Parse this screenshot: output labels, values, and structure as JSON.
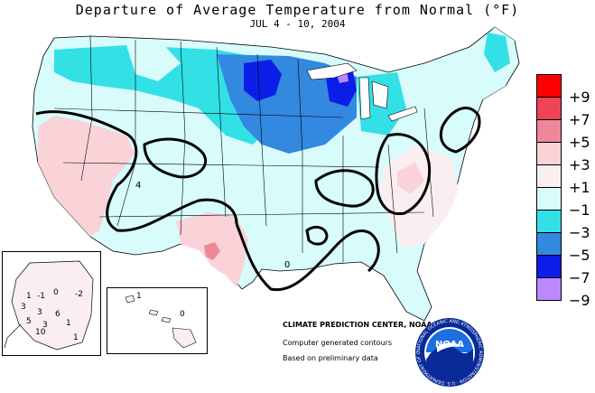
{
  "title": "Departure of Average Temperature from Normal (°F)",
  "subtitle": "JUL 4 - 10, 2004",
  "legend": {
    "items": [
      {
        "label": "+9",
        "color": "#ff0000"
      },
      {
        "label": "+7",
        "color": "#ee4455"
      },
      {
        "label": "+5",
        "color": "#ee8899"
      },
      {
        "label": "+3",
        "color": "#f9d3d8"
      },
      {
        "label": "+1",
        "color": "#fbeef0"
      },
      {
        "label": "−1",
        "color": "#d8fbfb"
      },
      {
        "label": "−3",
        "color": "#33e0e6"
      },
      {
        "label": "−5",
        "color": "#3388e0"
      },
      {
        "label": "−7",
        "color": "#0b1ee8"
      },
      {
        "label": "−9",
        "color": "#bb88ff"
      }
    ]
  },
  "credits": {
    "org": "CLIMATE PREDICTION CENTER, NOAA",
    "line1": "Computer generated contours",
    "line2": "Based on preliminary data"
  },
  "noaa_logo": {
    "text": "NOAA",
    "ring_text": "NATIONAL OCEANIC AND ATMOSPHERIC ADMINISTRATION · U.S. DEPARTMENT OF COMMERCE"
  },
  "alaska_labels": [
    "1",
    "-1",
    "0",
    "-2",
    "3",
    "3",
    "6",
    "5",
    "1",
    "10",
    "3",
    "1"
  ],
  "hawaii_labels": [
    "1",
    "0"
  ],
  "map_labels": [
    "4",
    "0"
  ]
}
